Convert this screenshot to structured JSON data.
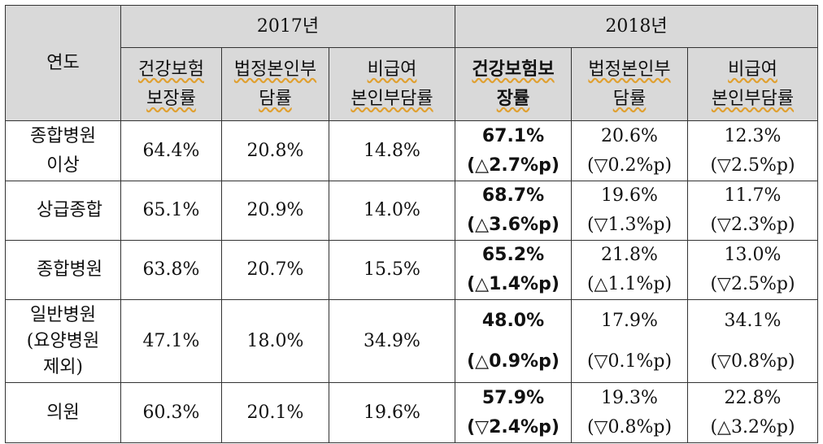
{
  "header": {
    "year_col": "연도",
    "group_2017": "2017년",
    "group_2018": "2018년",
    "cols_2017": [
      {
        "l1": "건강보험",
        "l2": "보장률"
      },
      {
        "l1": "법정본인부",
        "l2": "담률"
      },
      {
        "l1": "비급여",
        "l2": "본인부담률"
      }
    ],
    "cols_2018": [
      {
        "l1": "건강보험보",
        "l2": "장률"
      },
      {
        "l1": "법정본인부",
        "l2": "담률"
      },
      {
        "l1": "비급여",
        "l2": "본인부담률"
      }
    ]
  },
  "rows": [
    {
      "label1": "종합병원",
      "label2": "이상",
      "y2017": [
        "64.4%",
        "20.8%",
        "14.8%"
      ],
      "y2018": [
        {
          "v": "67.1%",
          "d": "(△2.7%p)"
        },
        {
          "v": "20.6%",
          "d": "(▽0.2%p)"
        },
        {
          "v": "12.3%",
          "d": "(▽2.5%p)"
        }
      ]
    },
    {
      "label1": "상급종합",
      "y2017": [
        "65.1%",
        "20.9%",
        "14.0%"
      ],
      "y2018": [
        {
          "v": "68.7%",
          "d": "(△3.6%p)"
        },
        {
          "v": "19.6%",
          "d": "(▽1.3%p)"
        },
        {
          "v": "11.7%",
          "d": "(▽2.3%p)"
        }
      ]
    },
    {
      "label1": "종합병원",
      "y2017": [
        "63.8%",
        "20.7%",
        "15.5%"
      ],
      "y2018": [
        {
          "v": "65.2%",
          "d": "(△1.4%p)"
        },
        {
          "v": "21.8%",
          "d": "(△1.1%p)"
        },
        {
          "v": "13.0%",
          "d": "(▽2.5%p)"
        }
      ]
    },
    {
      "label1": "일반병원",
      "label2": "(요양병원",
      "label3": "제외)",
      "y2017": [
        "47.1%",
        "18.0%",
        "34.9%"
      ],
      "y2018": [
        {
          "v": "48.0%",
          "d": "(△0.9%p)"
        },
        {
          "v": "17.9%",
          "d": "(▽0.1%p)"
        },
        {
          "v": "34.1%",
          "d": "(▽0.8%p)"
        }
      ]
    },
    {
      "label1": "의원",
      "y2017": [
        "60.3%",
        "20.1%",
        "19.6%"
      ],
      "y2018": [
        {
          "v": "57.9%",
          "d": "(▽2.4%p)"
        },
        {
          "v": "19.3%",
          "d": "(▽0.8%p)"
        },
        {
          "v": "22.8%",
          "d": "(△3.2%p)"
        }
      ]
    }
  ]
}
